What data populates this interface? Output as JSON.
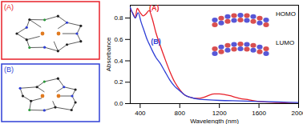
{
  "chart_data": {
    "type": "line",
    "x_label": "Wavelength (nm)",
    "y_label": "Absorbance",
    "xlim": [
      300,
      2000
    ],
    "xticks": [
      400,
      800,
      1200,
      1600,
      2000
    ],
    "ylim": [
      0,
      0.92
    ],
    "yticks": [
      {
        "value": 0,
        "label": "0.0"
      },
      {
        "value": 0.2,
        "label": "0.2"
      },
      {
        "value": 0.4,
        "label": "0.4"
      },
      {
        "value": 0.6,
        "label": "0.6"
      },
      {
        "value": 0.8,
        "label": "0.8"
      }
    ],
    "grid": false,
    "series": [
      {
        "name": "(A)",
        "color": "#e8202a",
        "x": [
          300,
          330,
          350,
          370,
          400,
          430,
          460,
          490,
          520,
          560,
          600,
          650,
          700,
          750,
          800,
          850,
          900,
          950,
          1000,
          1050,
          1100,
          1150,
          1200,
          1250,
          1300,
          1400,
          1500,
          1600,
          1800,
          2000
        ],
        "values": [
          0.88,
          0.84,
          0.8,
          0.89,
          0.85,
          0.82,
          0.84,
          0.87,
          0.8,
          0.66,
          0.55,
          0.42,
          0.3,
          0.2,
          0.13,
          0.08,
          0.06,
          0.05,
          0.05,
          0.06,
          0.08,
          0.09,
          0.09,
          0.085,
          0.075,
          0.05,
          0.035,
          0.02,
          0.01,
          0.0
        ]
      },
      {
        "name": "(B)",
        "color": "#2f3fd6",
        "x": [
          300,
          330,
          350,
          380,
          410,
          440,
          470,
          490,
          520,
          560,
          600,
          650,
          700,
          750,
          800,
          850,
          900,
          1000,
          1100,
          1200,
          1400,
          1600,
          1800,
          2000
        ],
        "values": [
          0.9,
          0.83,
          0.8,
          0.85,
          0.76,
          0.68,
          0.6,
          0.56,
          0.5,
          0.43,
          0.38,
          0.3,
          0.22,
          0.16,
          0.12,
          0.08,
          0.06,
          0.04,
          0.035,
          0.03,
          0.025,
          0.02,
          0.015,
          0.01
        ]
      }
    ],
    "annotations": [
      {
        "text": "(A)",
        "x": 540,
        "y": 0.89,
        "color": "#e8202a"
      },
      {
        "text": "(B)",
        "x": 560,
        "y": 0.58,
        "color": "#2f3fd6"
      }
    ]
  },
  "panels": [
    {
      "label": "(A)",
      "color": "#e8202a"
    },
    {
      "label": "(B)",
      "color": "#2f3fd6"
    }
  ],
  "inset": {
    "labels": [
      "HOMO",
      "LUMO"
    ]
  }
}
